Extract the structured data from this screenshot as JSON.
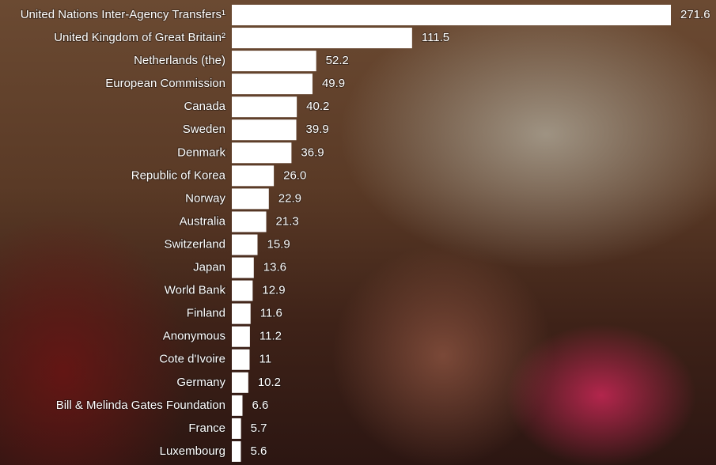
{
  "chart_data": {
    "type": "bar",
    "orientation": "horizontal",
    "color": "#ffffff",
    "categories": [
      "United Nations Inter-Agency Transfers¹",
      "United Kingdom of Great Britain²",
      "Netherlands (the)",
      "European Commission",
      "Canada",
      "Sweden",
      "Denmark",
      "Republic of Korea",
      "Norway",
      "Australia",
      "Switzerland",
      "Japan",
      "World Bank",
      "Finland",
      "Anonymous",
      "Cote d'Ivoire",
      "Germany",
      "Bill & Melinda Gates Foundation",
      "France",
      "Luxembourg"
    ],
    "values": [
      271.6,
      111.5,
      52.2,
      49.9,
      40.2,
      39.9,
      36.9,
      26.0,
      22.9,
      21.3,
      15.9,
      13.6,
      12.9,
      11.6,
      11.2,
      11,
      10.2,
      6.6,
      5.7,
      5.6
    ],
    "value_labels": [
      "271.6",
      "111.5",
      "52.2",
      "49.9",
      "40.2",
      "39.9",
      "36.9",
      "26.0",
      "22.9",
      "21.3",
      "15.9",
      "13.6",
      "12.9",
      "11.6",
      "11.2",
      "11",
      "10.2",
      "6.6",
      "5.7",
      "5.6"
    ]
  }
}
